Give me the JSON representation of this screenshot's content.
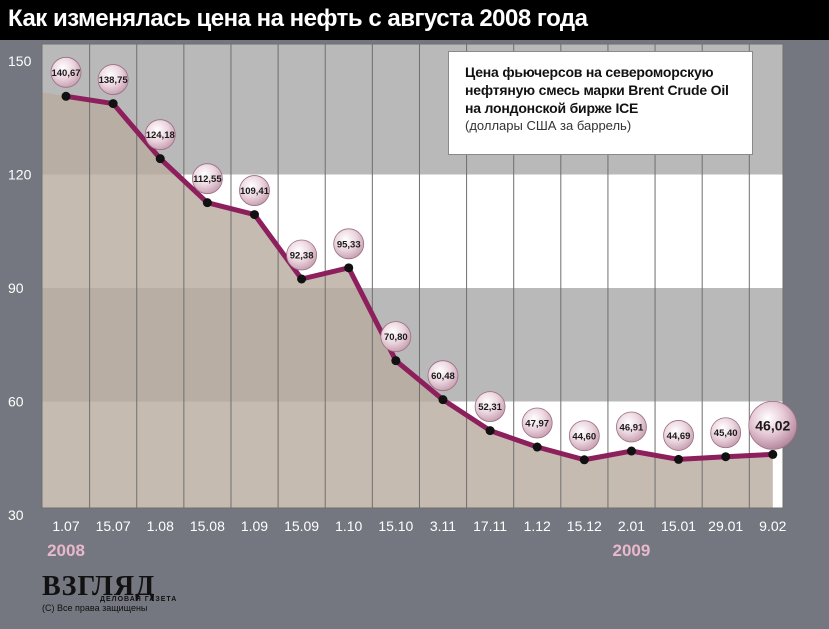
{
  "title": "Как изменялась цена на нефть с августа 2008 года",
  "legend": {
    "title_line1": "Цена фьючерсов на североморскую",
    "title_line2": "нефтяную смесь марки Brent Crude Oil",
    "title_line3": "на лондонской бирже ICE",
    "subtitle": "(доллары США за баррель)"
  },
  "branding": {
    "logo": "ВЗГЛЯД",
    "tagline": "ДЕЛОВАЯ ГАЗЕТА",
    "copyright": "(С) Все права защищены"
  },
  "colors": {
    "page_background": "#74777f",
    "line": "#8c1f5c",
    "area_fill": "#b9aca0",
    "band_dark": "#b9b9b9",
    "band_light": "#ffffff",
    "year_label": "#e8b8cd",
    "bubble": "#e6c9d4"
  },
  "chart_data": {
    "type": "line",
    "categories": [
      "1.07",
      "15.07",
      "1.08",
      "15.08",
      "1.09",
      "15.09",
      "1.10",
      "15.10",
      "3.11",
      "17.11",
      "1.12",
      "15.12",
      "2.01",
      "15.01",
      "29.01",
      "9.02"
    ],
    "values": [
      140.67,
      138.75,
      124.18,
      112.55,
      109.41,
      92.38,
      95.33,
      70.8,
      60.48,
      52.31,
      47.97,
      44.6,
      46.91,
      44.69,
      45.4,
      46.02
    ],
    "data_labels": [
      "140,67",
      "138,75",
      "124,18",
      "112,55",
      "109,41",
      "92,38",
      "95,33",
      "70,80",
      "60,48",
      "52,31",
      "47,97",
      "44,60",
      "46,91",
      "44,69",
      "45,40",
      "46,02"
    ],
    "year_labels": [
      {
        "text": "2008",
        "category": "1.07"
      },
      {
        "text": "2009",
        "category": "2.01"
      }
    ],
    "yticks": [
      "150",
      "120",
      "90",
      "60",
      "30"
    ],
    "ylim": [
      30,
      150
    ],
    "grid": true,
    "legend_position": "top-right",
    "area_under_line": true
  }
}
